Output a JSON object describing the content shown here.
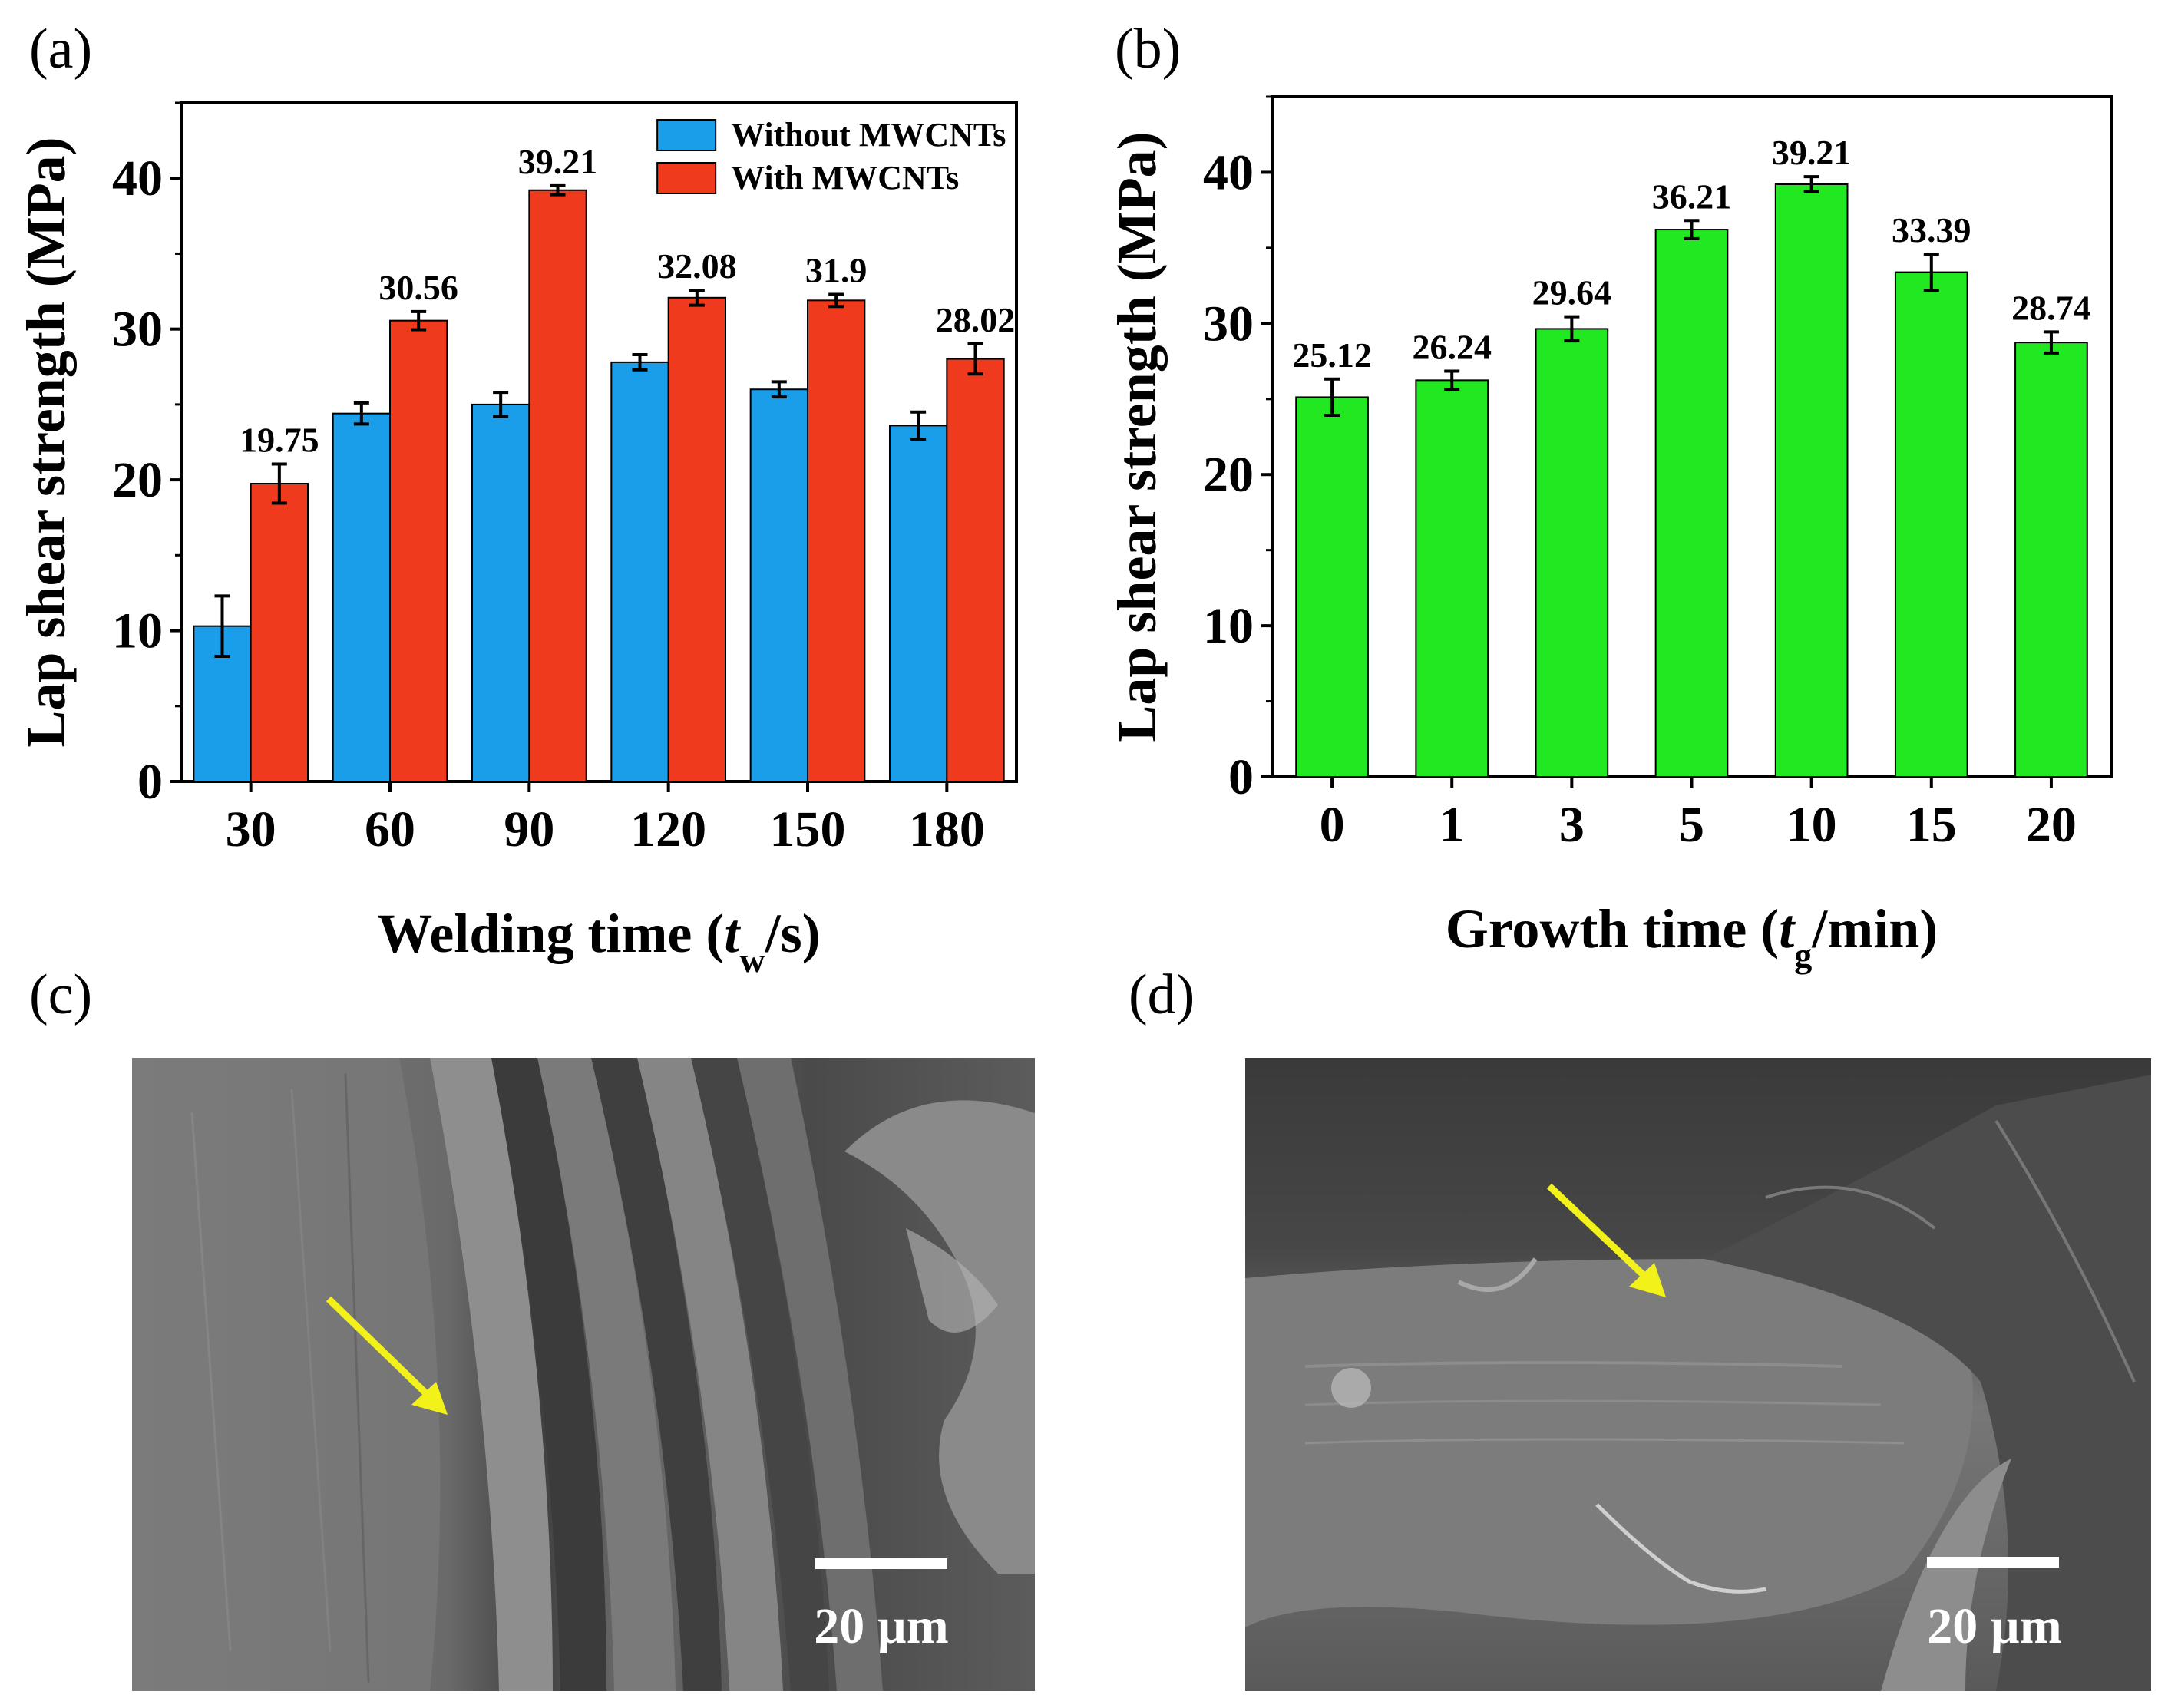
{
  "panels": {
    "a": "(a)",
    "b": "(b)",
    "c": "(c)",
    "d": "(d)"
  },
  "chart_data": [
    {
      "id": "a",
      "type": "bar",
      "title": "",
      "xlabel_main": "Welding time (",
      "xlabel_var": "t",
      "xlabel_sub": "w",
      "xlabel_end": "/s)",
      "ylabel": "Lap shear strength (MPa)",
      "ylim": [
        0,
        45
      ],
      "yticks": [
        0,
        10,
        20,
        30,
        40
      ],
      "categories": [
        "30",
        "60",
        "90",
        "120",
        "150",
        "180"
      ],
      "series": [
        {
          "name": "Without MWCNTs",
          "color": "#1a9eea",
          "values": [
            10.3,
            24.4,
            25.0,
            27.8,
            26.0,
            23.6
          ],
          "errors": [
            2.0,
            0.7,
            0.8,
            0.5,
            0.5,
            0.9
          ],
          "labels": null
        },
        {
          "name": "With MWCNTs",
          "color": "#f03a1e",
          "values": [
            19.75,
            30.56,
            39.21,
            32.08,
            31.9,
            28.02
          ],
          "errors": [
            1.3,
            0.6,
            0.3,
            0.5,
            0.4,
            1.0
          ],
          "labels": [
            "19.75",
            "30.56",
            "39.21",
            "32.08",
            "31.9",
            "28.02"
          ]
        }
      ],
      "legend_position": "top-right"
    },
    {
      "id": "b",
      "type": "bar",
      "title": "",
      "xlabel_main": "Growth time (",
      "xlabel_var": "t",
      "xlabel_sub": "g",
      "xlabel_end": "/min)",
      "ylabel": "Lap shear strength (MPa)",
      "ylim": [
        0,
        45
      ],
      "yticks": [
        0,
        10,
        20,
        30,
        40
      ],
      "categories": [
        "0",
        "1",
        "3",
        "5",
        "10",
        "15",
        "20"
      ],
      "series": [
        {
          "name": "Lap shear strength",
          "color": "#22e822",
          "values": [
            25.12,
            26.24,
            29.64,
            36.21,
            39.21,
            33.39,
            28.74
          ],
          "errors": [
            1.2,
            0.6,
            0.8,
            0.6,
            0.5,
            1.2,
            0.7
          ],
          "labels": [
            "25.12",
            "26.24",
            "29.64",
            "36.21",
            "39.21",
            "33.39",
            "28.74"
          ]
        }
      ]
    }
  ],
  "micrographs": {
    "c": {
      "scale_text": "20 µm"
    },
    "d": {
      "scale_text": "20 µm"
    }
  },
  "colors": {
    "arrow": "#f2f21a",
    "scale_bar": "#ffffff"
  }
}
